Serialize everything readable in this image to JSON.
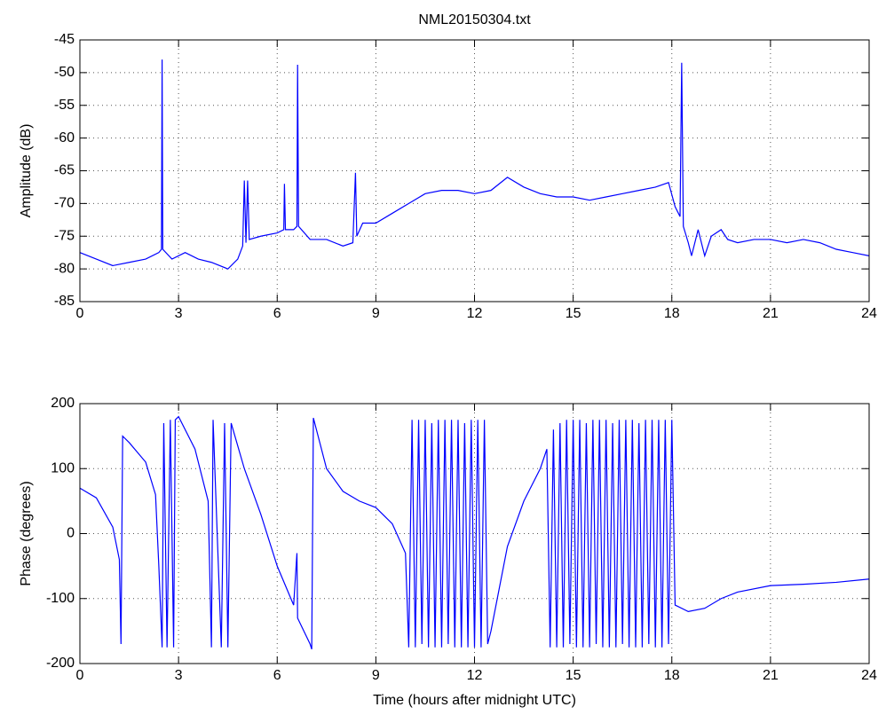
{
  "chart_data": [
    {
      "type": "line",
      "title": "NML20150304.txt",
      "ylabel": "Amplitude (dB)",
      "grid": true,
      "xlim": [
        0,
        24
      ],
      "xticks": [
        0,
        3,
        6,
        9,
        12,
        15,
        18,
        21,
        24
      ],
      "ylim": [
        -85,
        -45
      ],
      "yticks": [
        -85,
        -80,
        -75,
        -70,
        -65,
        -60,
        -55,
        -50,
        -45
      ],
      "x": [
        0,
        0.5,
        1,
        1.5,
        2,
        2.4,
        2.48,
        2.5,
        2.52,
        2.8,
        3.2,
        3.6,
        4,
        4.5,
        4.8,
        4.95,
        5.0,
        5.05,
        5.1,
        5.15,
        5.5,
        6.0,
        6.2,
        6.22,
        6.25,
        6.5,
        6.6,
        6.62,
        6.65,
        7.0,
        7.5,
        8.0,
        8.3,
        8.38,
        8.42,
        8.6,
        9.0,
        9.5,
        10,
        10.5,
        11,
        11.5,
        12,
        12.5,
        13,
        13.5,
        14,
        14.5,
        15,
        15.5,
        16,
        16.5,
        17,
        17.5,
        17.9,
        18.1,
        18.25,
        18.3,
        18.35,
        18.5,
        18.6,
        18.8,
        19.0,
        19.2,
        19.5,
        19.7,
        20,
        20.5,
        21,
        21.5,
        22,
        22.5,
        23,
        23.5,
        24
      ],
      "series": [
        {
          "color": "#0000ff",
          "values": [
            -77.5,
            -78.5,
            -79.5,
            -79,
            -78.5,
            -77.5,
            -77,
            -48,
            -77,
            -78.5,
            -77.5,
            -78.5,
            -79,
            -80,
            -78.5,
            -76.5,
            -66.5,
            -76,
            -66.5,
            -75.5,
            -75,
            -74.5,
            -74,
            -67,
            -74,
            -74,
            -73.5,
            -48.8,
            -73.5,
            -75.5,
            -75.5,
            -76.5,
            -76,
            -65.3,
            -75,
            -73,
            -73,
            -71.5,
            -70,
            -68.5,
            -68,
            -68,
            -68.5,
            -68,
            -66,
            -67.5,
            -68.5,
            -69,
            -69,
            -69.5,
            -69,
            -68.5,
            -68,
            -67.5,
            -66.8,
            -70.5,
            -72,
            -48.5,
            -73.5,
            -76,
            -78,
            -74,
            -78,
            -75,
            -74,
            -75.5,
            -76,
            -75.5,
            -75.5,
            -76,
            -75.5,
            -76,
            -77,
            -77.5,
            -78
          ]
        }
      ]
    },
    {
      "type": "line",
      "ylabel": "Phase (degrees)",
      "xlabel": "Time (hours after midnight UTC)",
      "grid": true,
      "xlim": [
        0,
        24
      ],
      "xticks": [
        0,
        3,
        6,
        9,
        12,
        15,
        18,
        21,
        24
      ],
      "ylim": [
        -200,
        200
      ],
      "yticks": [
        -200,
        -100,
        0,
        100,
        200
      ],
      "x": [
        0,
        0.5,
        1.0,
        1.2,
        1.25,
        1.3,
        1.5,
        2.0,
        2.3,
        2.4,
        2.5,
        2.55,
        2.65,
        2.75,
        2.85,
        2.9,
        3.0,
        3.5,
        3.9,
        4.0,
        4.05,
        4.3,
        4.4,
        4.5,
        4.6,
        5.0,
        5.5,
        6.0,
        6.5,
        6.6,
        6.62,
        7.0,
        7.05,
        7.1,
        7.5,
        8,
        8.5,
        9,
        9.5,
        9.9,
        10.0,
        10.1,
        10.2,
        10.3,
        10.4,
        10.5,
        10.6,
        10.7,
        10.8,
        10.9,
        11.0,
        11.1,
        11.2,
        11.3,
        11.4,
        11.5,
        11.6,
        11.7,
        11.8,
        11.9,
        12.0,
        12.1,
        12.2,
        12.3,
        12.4,
        12.5,
        13,
        13.5,
        14,
        14.2,
        14.3,
        14.4,
        14.5,
        14.6,
        14.7,
        14.8,
        14.9,
        15.0,
        15.1,
        15.2,
        15.3,
        15.4,
        15.5,
        15.6,
        15.7,
        15.8,
        15.9,
        16.0,
        16.1,
        16.2,
        16.3,
        16.4,
        16.5,
        16.6,
        16.7,
        16.8,
        16.9,
        17.0,
        17.1,
        17.2,
        17.3,
        17.4,
        17.5,
        17.6,
        17.7,
        17.8,
        17.9,
        18.0,
        18.1,
        18.5,
        19,
        19.5,
        20,
        21,
        22,
        23,
        24
      ],
      "series": [
        {
          "color": "#0000ff",
          "values": [
            70,
            55,
            10,
            -40,
            -170,
            150,
            140,
            110,
            60,
            -50,
            -175,
            170,
            -175,
            175,
            -175,
            175,
            180,
            130,
            50,
            -175,
            175,
            -175,
            170,
            -175,
            170,
            100,
            30,
            -50,
            -110,
            -30,
            -130,
            -170,
            -178,
            178,
            100,
            65,
            50,
            40,
            15,
            -30,
            -175,
            175,
            -175,
            175,
            -170,
            175,
            -175,
            170,
            -175,
            175,
            -175,
            175,
            -170,
            175,
            -175,
            175,
            -175,
            170,
            -175,
            175,
            -175,
            175,
            -175,
            175,
            -170,
            -150,
            -20,
            50,
            100,
            130,
            -175,
            160,
            -175,
            170,
            -175,
            175,
            -170,
            175,
            -175,
            175,
            -175,
            170,
            -175,
            175,
            -170,
            175,
            -175,
            175,
            -175,
            170,
            -175,
            175,
            -170,
            175,
            -175,
            175,
            -175,
            170,
            -175,
            175,
            -170,
            175,
            -175,
            175,
            -175,
            175,
            -170,
            175,
            -110,
            -120,
            -115,
            -100,
            -90,
            -80,
            -78,
            -75,
            -70
          ]
        }
      ]
    }
  ]
}
